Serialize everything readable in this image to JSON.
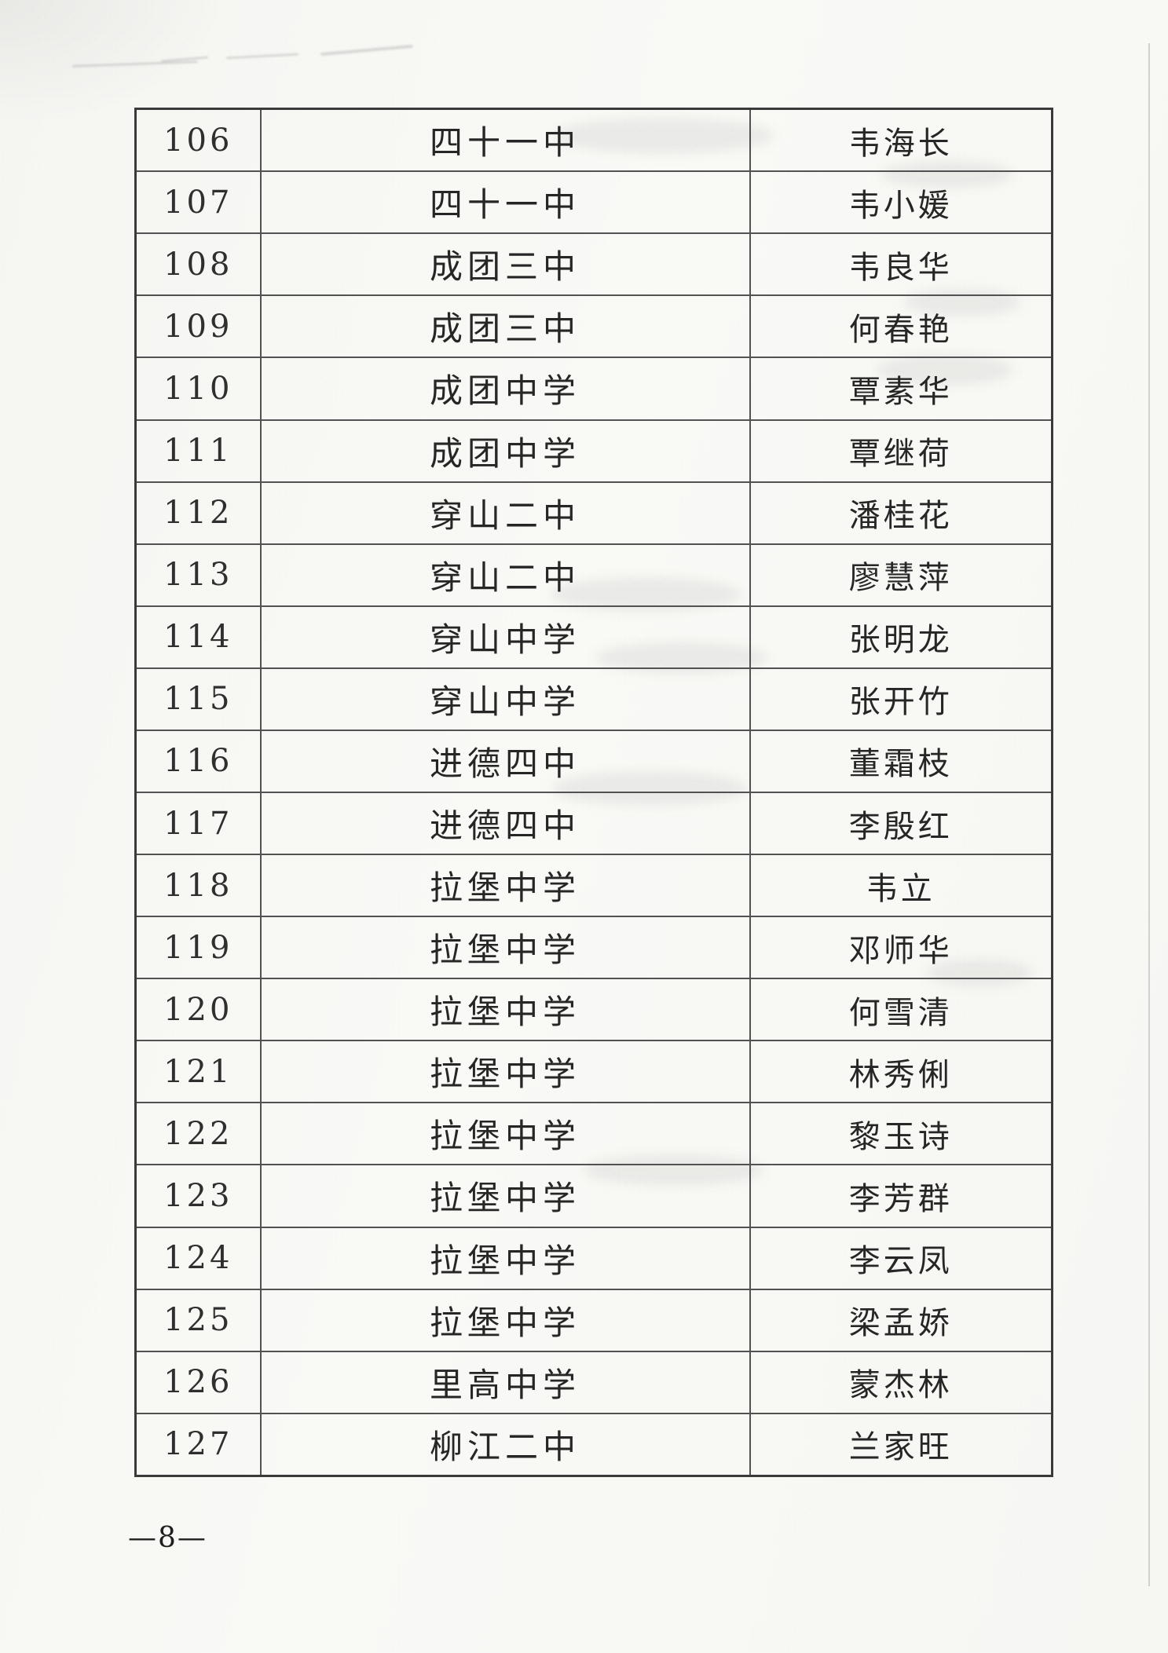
{
  "page": {
    "number_label": "—8—"
  },
  "table": {
    "rows": [
      {
        "no": "106",
        "school": "四十一中",
        "name": "韦海长"
      },
      {
        "no": "107",
        "school": "四十一中",
        "name": "韦小媛"
      },
      {
        "no": "108",
        "school": "成团三中",
        "name": "韦良华"
      },
      {
        "no": "109",
        "school": "成团三中",
        "name": "何春艳"
      },
      {
        "no": "110",
        "school": "成团中学",
        "name": "覃素华"
      },
      {
        "no": "111",
        "school": "成团中学",
        "name": "覃继荷"
      },
      {
        "no": "112",
        "school": "穿山二中",
        "name": "潘桂花"
      },
      {
        "no": "113",
        "school": "穿山二中",
        "name": "廖慧萍"
      },
      {
        "no": "114",
        "school": "穿山中学",
        "name": "张明龙"
      },
      {
        "no": "115",
        "school": "穿山中学",
        "name": "张开竹"
      },
      {
        "no": "116",
        "school": "进德四中",
        "name": "董霜枝"
      },
      {
        "no": "117",
        "school": "进德四中",
        "name": "李殷红"
      },
      {
        "no": "118",
        "school": "拉堡中学",
        "name": "韦立"
      },
      {
        "no": "119",
        "school": "拉堡中学",
        "name": "邓师华"
      },
      {
        "no": "120",
        "school": "拉堡中学",
        "name": "何雪清"
      },
      {
        "no": "121",
        "school": "拉堡中学",
        "name": "林秀俐"
      },
      {
        "no": "122",
        "school": "拉堡中学",
        "name": "黎玉诗"
      },
      {
        "no": "123",
        "school": "拉堡中学",
        "name": "李芳群"
      },
      {
        "no": "124",
        "school": "拉堡中学",
        "name": "李云凤"
      },
      {
        "no": "125",
        "school": "拉堡中学",
        "name": "梁孟娇"
      },
      {
        "no": "126",
        "school": "里高中学",
        "name": "蒙杰林"
      },
      {
        "no": "127",
        "school": "柳江二中",
        "name": "兰家旺"
      }
    ]
  }
}
